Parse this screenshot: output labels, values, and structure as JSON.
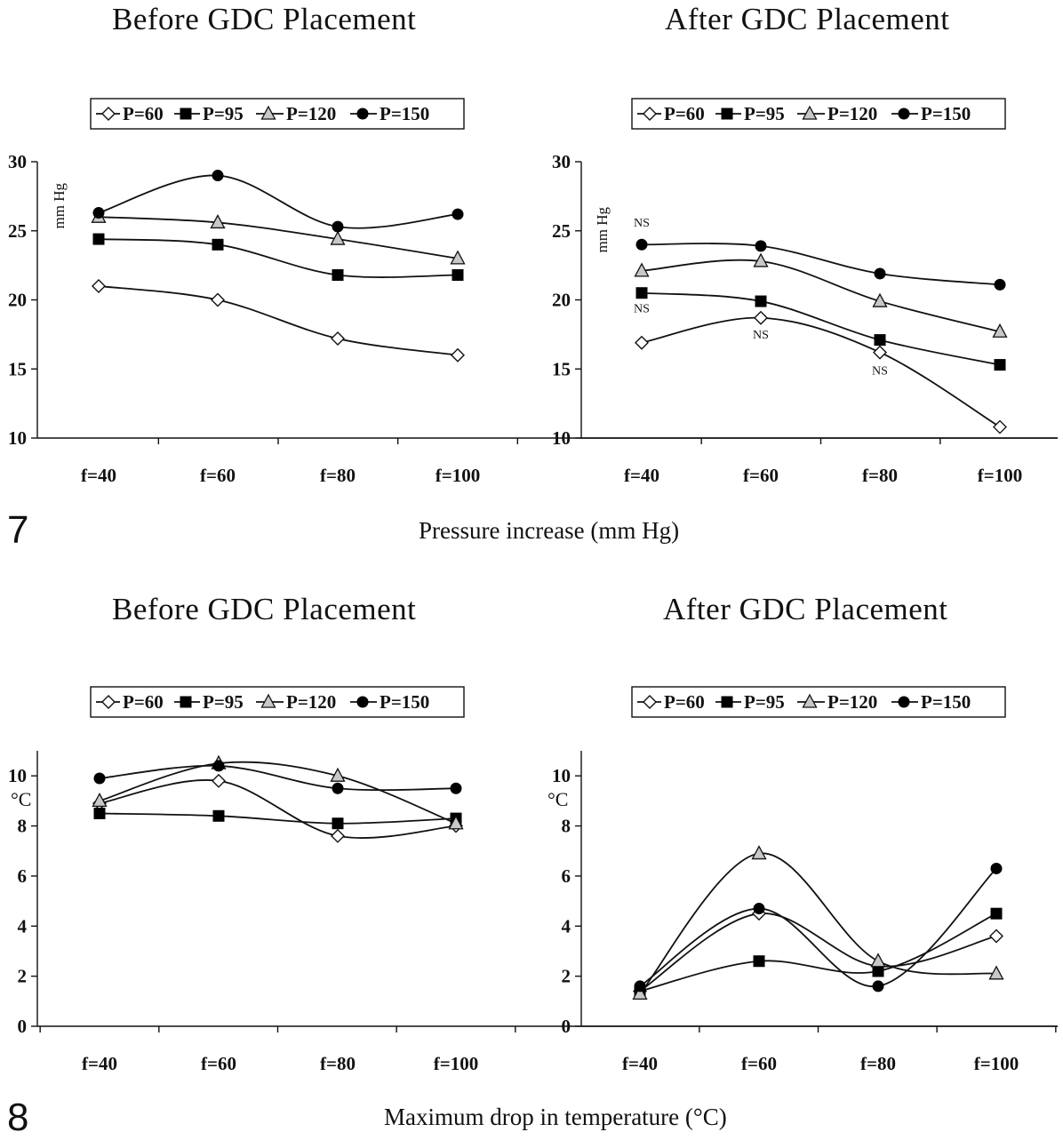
{
  "figures": [
    {
      "number": "7",
      "caption": "Pressure increase (mm Hg)"
    },
    {
      "number": "8",
      "caption": "Maximum drop in temperature (°C)"
    }
  ],
  "colors": {
    "line": "#111111",
    "open_marker": "#ffffff",
    "gray_marker": "#c8c8c8",
    "solid_marker": "#000000"
  },
  "chart_data": [
    {
      "type": "line",
      "title": "Before GDC Placement",
      "ylabel": "mm Hg",
      "categories": [
        "f=40",
        "f=60",
        "f=80",
        "f=100"
      ],
      "ylim": [
        10,
        30
      ],
      "yticks": [
        10,
        15,
        20,
        25,
        30
      ],
      "legend": "top",
      "series": [
        {
          "name": "P=60",
          "marker": "diamond-open",
          "values": [
            21.0,
            20.0,
            17.2,
            16.0
          ]
        },
        {
          "name": "P=95",
          "marker": "square-filled",
          "values": [
            24.4,
            24.0,
            21.8,
            21.8
          ]
        },
        {
          "name": "P=120",
          "marker": "triangle-gray",
          "values": [
            26.0,
            25.6,
            24.4,
            23.0
          ]
        },
        {
          "name": "P=150",
          "marker": "circle-filled",
          "values": [
            26.3,
            29.0,
            25.3,
            26.2
          ]
        }
      ],
      "annotations": []
    },
    {
      "type": "line",
      "title": "After GDC Placement",
      "ylabel": "mm Hg",
      "categories": [
        "f=40",
        "f=60",
        "f=80",
        "f=100"
      ],
      "ylim": [
        10,
        30
      ],
      "yticks": [
        10,
        15,
        20,
        25,
        30
      ],
      "legend": "top",
      "series": [
        {
          "name": "P=60",
          "marker": "diamond-open",
          "values": [
            16.9,
            18.7,
            16.2,
            10.8
          ]
        },
        {
          "name": "P=95",
          "marker": "square-filled",
          "values": [
            20.5,
            19.9,
            17.1,
            15.3
          ]
        },
        {
          "name": "P=120",
          "marker": "triangle-gray",
          "values": [
            22.1,
            22.8,
            19.9,
            17.7
          ]
        },
        {
          "name": "P=150",
          "marker": "circle-filled",
          "values": [
            24.0,
            23.9,
            21.9,
            21.1
          ]
        }
      ],
      "annotations": [
        {
          "text": "NS",
          "category": "f=40",
          "y": 25.3
        },
        {
          "text": "NS",
          "category": "f=40",
          "y": 19.1
        },
        {
          "text": "NS",
          "category": "f=60",
          "y": 17.2
        },
        {
          "text": "NS",
          "category": "f=80",
          "y": 14.6
        }
      ]
    },
    {
      "type": "line",
      "title": "Before GDC Placement",
      "ylabel": "°C",
      "categories": [
        "f=40",
        "f=60",
        "f=80",
        "f=100"
      ],
      "ylim": [
        0,
        11
      ],
      "yticks": [
        0,
        2,
        4,
        6,
        8,
        10
      ],
      "legend": "top",
      "series": [
        {
          "name": "P=60",
          "marker": "diamond-open",
          "values": [
            8.9,
            9.8,
            7.6,
            8.0
          ]
        },
        {
          "name": "P=95",
          "marker": "square-filled",
          "values": [
            8.5,
            8.4,
            8.1,
            8.3
          ]
        },
        {
          "name": "P=120",
          "marker": "triangle-gray",
          "values": [
            9.0,
            10.5,
            10.0,
            8.1
          ]
        },
        {
          "name": "P=150",
          "marker": "circle-filled",
          "values": [
            9.9,
            10.4,
            9.5,
            9.5
          ]
        }
      ],
      "annotations": []
    },
    {
      "type": "line",
      "title": "After GDC Placement",
      "ylabel": "°C",
      "categories": [
        "f=40",
        "f=60",
        "f=80",
        "f=100"
      ],
      "ylim": [
        0,
        11
      ],
      "yticks": [
        0,
        2,
        4,
        6,
        8,
        10
      ],
      "legend": "top",
      "series": [
        {
          "name": "P=60",
          "marker": "diamond-open",
          "values": [
            1.4,
            4.5,
            2.4,
            3.6
          ]
        },
        {
          "name": "P=95",
          "marker": "square-filled",
          "values": [
            1.4,
            2.6,
            2.2,
            4.5
          ]
        },
        {
          "name": "P=120",
          "marker": "triangle-gray",
          "values": [
            1.3,
            6.9,
            2.6,
            2.1
          ]
        },
        {
          "name": "P=150",
          "marker": "circle-filled",
          "values": [
            1.6,
            4.7,
            1.6,
            6.3
          ]
        }
      ],
      "annotations": []
    }
  ]
}
